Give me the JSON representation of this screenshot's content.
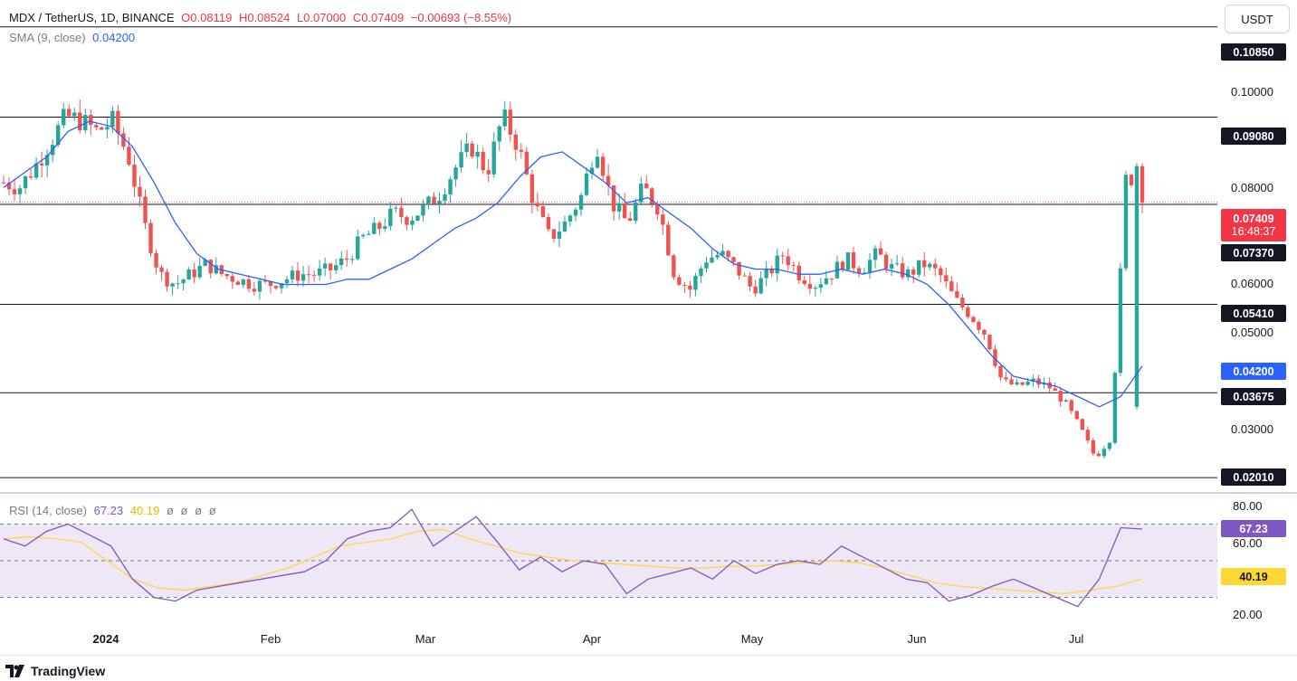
{
  "header": {
    "symbol": "MDX / TetherUS, 1D, BINANCE",
    "open": "O0.08119",
    "high": "H0.08524",
    "low": "L0.07000",
    "close": "C0.07409",
    "change": "−0.00693 (−8.55%)",
    "sma_label": "SMA (9, close)",
    "sma_value": "0.04200",
    "currency": "USDT"
  },
  "rsi_legend": {
    "label": "RSI (14, close)",
    "rsi_value": "67.23",
    "ma_value": "40.19",
    "empty1": "ø",
    "empty2": "ø",
    "empty3": "ø",
    "empty4": "ø"
  },
  "price_axis_labels": [
    "0.10000",
    "0.08000",
    "0.06000",
    "0.05000",
    "0.03000"
  ],
  "level_tags": [
    "0.10850",
    "0.09080",
    "0.07370",
    "0.05410",
    "0.03675",
    "0.02010"
  ],
  "current_tag": {
    "price": "0.07409",
    "countdown": "16:48:37"
  },
  "sma_tag": "0.04200",
  "rsi_axis_labels": [
    "80.00",
    "60.00",
    "20.00"
  ],
  "rsi_tags": {
    "rsi": "67.23",
    "ma": "40.19"
  },
  "x_axis": [
    "2024",
    "Feb",
    "Mar",
    "Apr",
    "May",
    "Jun",
    "Jul"
  ],
  "brand": "TradingView",
  "colors": {
    "up": "#26a69a",
    "down": "#ef5350",
    "sma": "#2962ff",
    "rsi": "#7e57c2",
    "rsi_ma": "#fdd835",
    "rsi_band": "#ede7f6"
  },
  "chart_data": {
    "type": "candlestick",
    "title": "MDX / TetherUS, 1D, BINANCE",
    "price_range": [
      0.018,
      0.112
    ],
    "levels": [
      0.1085,
      0.0908,
      0.0737,
      0.0541,
      0.03675,
      0.0201
    ],
    "current_price": 0.07409,
    "ohlc_path": [
      0.078,
      0.077,
      0.081,
      0.086,
      0.091,
      0.09,
      0.088,
      0.09,
      0.083,
      0.07,
      0.06,
      0.058,
      0.06,
      0.062,
      0.06,
      0.059,
      0.058,
      0.058,
      0.059,
      0.06,
      0.06,
      0.061,
      0.063,
      0.067,
      0.069,
      0.072,
      0.071,
      0.073,
      0.076,
      0.081,
      0.085,
      0.08,
      0.091,
      0.085,
      0.074,
      0.067,
      0.07,
      0.075,
      0.086,
      0.074,
      0.07,
      0.077,
      0.073,
      0.06,
      0.057,
      0.063,
      0.064,
      0.061,
      0.057,
      0.06,
      0.064,
      0.06,
      0.058,
      0.06,
      0.063,
      0.061,
      0.064,
      0.061,
      0.06,
      0.062,
      0.06,
      0.055,
      0.052,
      0.048,
      0.039,
      0.038,
      0.039,
      0.038,
      0.035,
      0.03,
      0.024,
      0.028,
      0.081,
      0.07409
    ],
    "sma9": [
      0.077,
      0.08,
      0.083,
      0.088,
      0.09,
      0.089,
      0.085,
      0.078,
      0.07,
      0.064,
      0.061,
      0.06,
      0.059,
      0.058,
      0.058,
      0.058,
      0.059,
      0.059,
      0.061,
      0.063,
      0.066,
      0.069,
      0.071,
      0.074,
      0.079,
      0.083,
      0.084,
      0.081,
      0.078,
      0.074,
      0.075,
      0.072,
      0.069,
      0.065,
      0.062,
      0.061,
      0.061,
      0.06,
      0.06,
      0.061,
      0.06,
      0.061,
      0.06,
      0.058,
      0.054,
      0.049,
      0.044,
      0.04,
      0.039,
      0.038,
      0.036,
      0.034,
      0.036,
      0.042
    ],
    "rsi_range": [
      15,
      85
    ],
    "rsi_levels": [
      70,
      50,
      30
    ],
    "rsi": [
      62,
      58,
      66,
      70,
      64,
      58,
      40,
      30,
      28,
      34,
      36,
      38,
      40,
      42,
      44,
      50,
      62,
      66,
      68,
      78,
      58,
      66,
      74,
      60,
      45,
      52,
      44,
      50,
      48,
      32,
      40,
      43,
      46,
      40,
      50,
      43,
      48,
      50,
      48,
      58,
      52,
      46,
      40,
      38,
      28,
      31,
      36,
      40,
      35,
      30,
      25,
      40,
      68,
      67.23
    ],
    "rsi_ma": [
      62,
      63,
      62,
      60,
      50,
      40,
      35,
      34,
      36,
      38,
      42,
      46,
      52,
      58,
      60,
      62,
      66,
      67,
      62,
      58,
      54,
      52,
      50,
      49,
      48,
      47,
      46,
      46,
      47,
      47,
      48,
      49,
      50,
      49,
      46,
      42,
      38,
      36,
      35,
      34,
      33,
      32,
      34,
      36,
      40.19
    ],
    "x_labels": [
      "2024",
      "Feb",
      "Mar",
      "Apr",
      "May",
      "Jun",
      "Jul"
    ]
  }
}
